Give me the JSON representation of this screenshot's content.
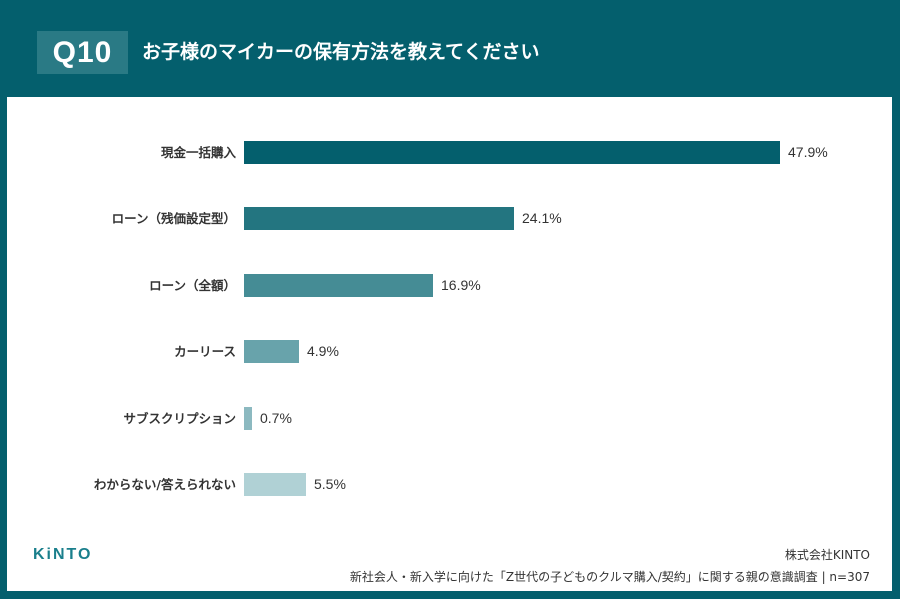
{
  "header": {
    "question_number": "Q10",
    "title": "お子様のマイカーの保有方法を教えてください"
  },
  "chart_data": {
    "type": "bar",
    "orientation": "horizontal",
    "title": "お子様のマイカーの保有方法を教えてください",
    "categories": [
      "現金一括購入",
      "ローン（残価設定型）",
      "ローン（全額）",
      "カーリース",
      "サブスクリプション",
      "わからない/答えられない"
    ],
    "values": [
      47.9,
      24.1,
      16.9,
      4.9,
      0.7,
      5.5
    ],
    "value_labels": [
      "47.9%",
      "24.1%",
      "16.9%",
      "4.9%",
      "0.7%",
      "5.5%"
    ],
    "colors": [
      "#045f6d",
      "#237580",
      "#458c95",
      "#68a3ab",
      "#8cb9c0",
      "#b0d1d5"
    ],
    "xlabel": "",
    "ylabel": "",
    "xlim": [
      0,
      50
    ],
    "unit": "%",
    "grid": false,
    "legend": false
  },
  "footer": {
    "logo": "KiNTO",
    "company": "株式会社KINTO",
    "source": "新社会人・新入学に向けた「Z世代の子どものクルマ購入/契約」に関する親の意識調査 | n=307"
  }
}
